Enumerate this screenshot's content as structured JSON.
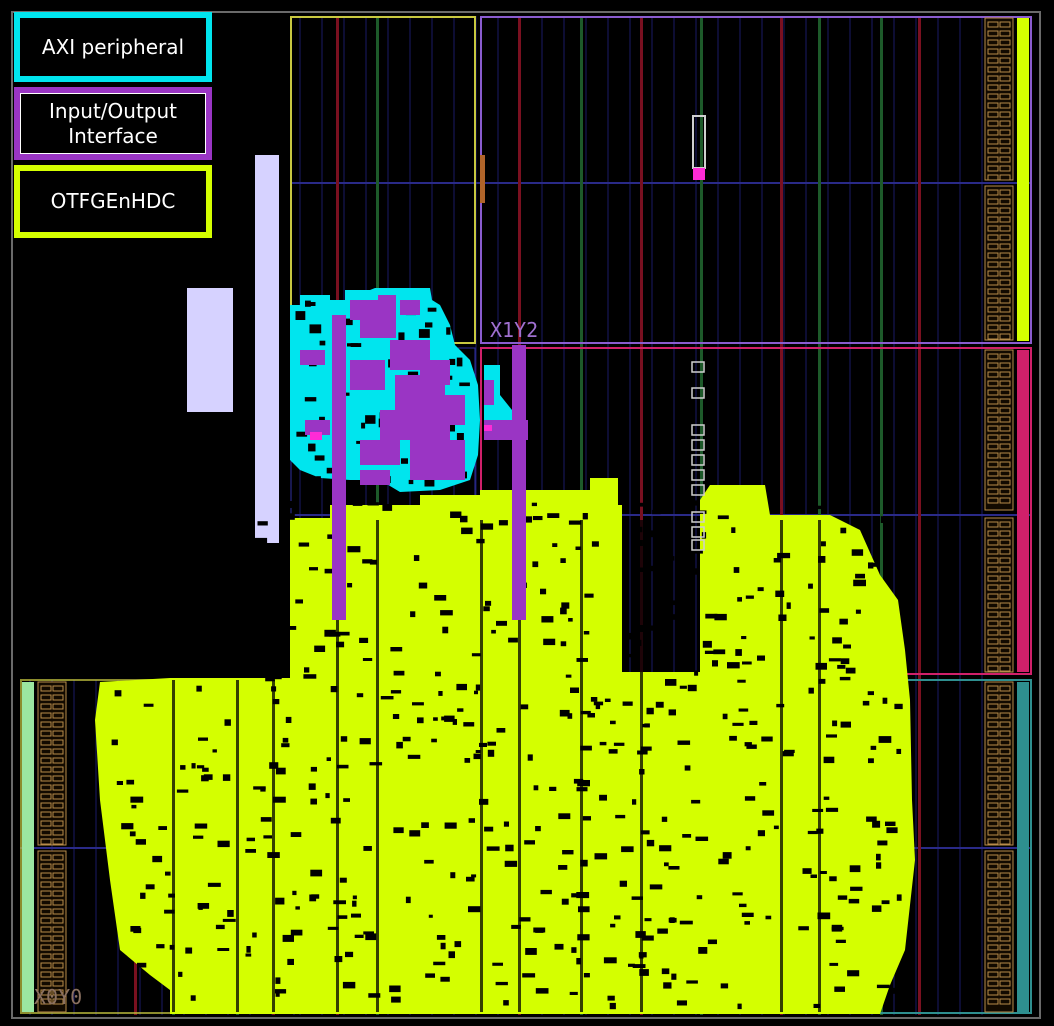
{
  "legend": [
    {
      "label": "AXI peripheral",
      "color": "#00e5ee"
    },
    {
      "label": "Input/Output\nInterface",
      "color": "#9a35c4"
    },
    {
      "label": "OTFGEnHDC",
      "color": "#d4ff00"
    }
  ],
  "clock_regions": [
    {
      "label": "X1Y2",
      "color": "#9a6fd0"
    },
    {
      "label": "X0Y0",
      "color": "#c8a080"
    }
  ],
  "colors": {
    "background": "#000000",
    "otfgenhdc": "#d4ff00",
    "axi": "#00e5ee",
    "io": "#9a35c4",
    "io_highlight": "#ff2bd6",
    "io_bank": "#b88c4a",
    "pblock_yellow": "#c8c840",
    "pblock_purple": "#8a5ccf",
    "pblock_magenta": "#d0206a",
    "pblock_teal": "#2e8f8f",
    "pblock_green": "#9be6a0",
    "fixed_block": "#d6d2ff",
    "column_red": "#7a1020",
    "column_green": "#1d5a2a",
    "grid_blue": "#1a1a66"
  }
}
